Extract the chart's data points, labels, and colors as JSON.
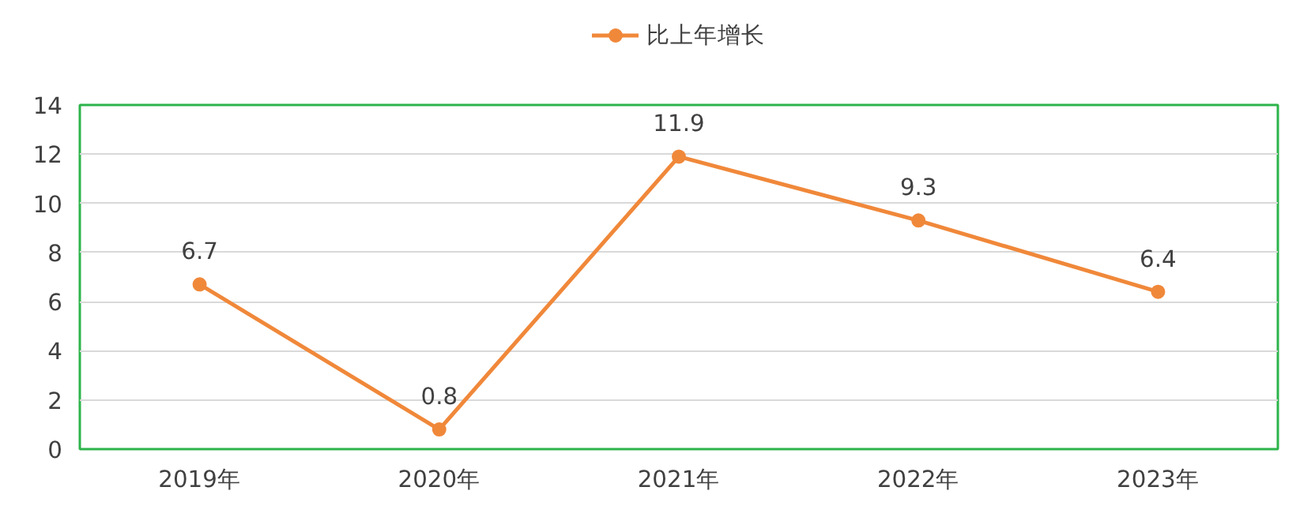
{
  "chart_data": {
    "type": "line",
    "categories": [
      "2019年",
      "2020年",
      "2021年",
      "2022年",
      "2023年"
    ],
    "series": [
      {
        "name": "比上年增长",
        "color": "#f0883a",
        "values": [
          6.7,
          0.8,
          11.9,
          9.3,
          6.4
        ]
      }
    ],
    "ylim": [
      0,
      14
    ],
    "yticks": [
      0,
      2,
      4,
      6,
      8,
      10,
      12,
      14
    ],
    "grid": "y",
    "legend": "top",
    "marker": "circle",
    "line_style": "solid",
    "data_labels": true
  }
}
